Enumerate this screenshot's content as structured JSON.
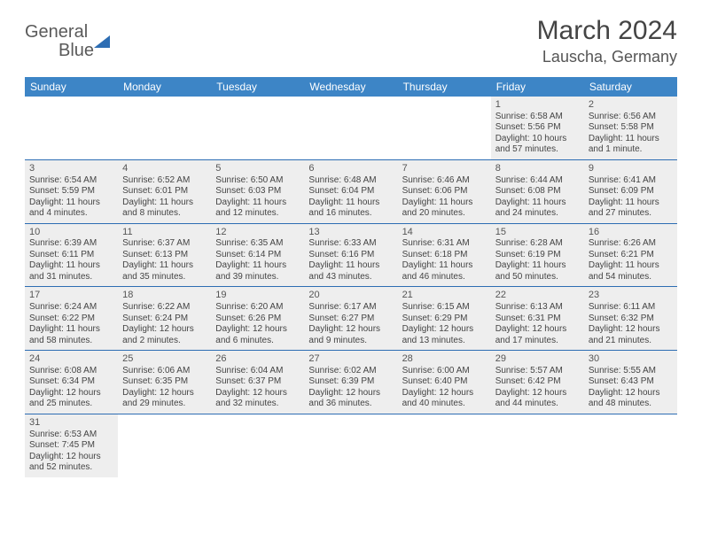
{
  "logo": {
    "part1": "General",
    "part2": "Blue"
  },
  "title": "March 2024",
  "location": "Lauscha, Germany",
  "dayNames": [
    "Sunday",
    "Monday",
    "Tuesday",
    "Wednesday",
    "Thursday",
    "Friday",
    "Saturday"
  ],
  "colors": {
    "header_bg": "#3d85c6",
    "divider": "#2d6db3",
    "shade": "#eeeeee",
    "text": "#444444"
  },
  "weeks": [
    [
      {
        "n": "",
        "sr": "",
        "ss": "",
        "dl": ""
      },
      {
        "n": "",
        "sr": "",
        "ss": "",
        "dl": ""
      },
      {
        "n": "",
        "sr": "",
        "ss": "",
        "dl": ""
      },
      {
        "n": "",
        "sr": "",
        "ss": "",
        "dl": ""
      },
      {
        "n": "",
        "sr": "",
        "ss": "",
        "dl": ""
      },
      {
        "n": "1",
        "sr": "Sunrise: 6:58 AM",
        "ss": "Sunset: 5:56 PM",
        "dl": "Daylight: 10 hours and 57 minutes."
      },
      {
        "n": "2",
        "sr": "Sunrise: 6:56 AM",
        "ss": "Sunset: 5:58 PM",
        "dl": "Daylight: 11 hours and 1 minute."
      }
    ],
    [
      {
        "n": "3",
        "sr": "Sunrise: 6:54 AM",
        "ss": "Sunset: 5:59 PM",
        "dl": "Daylight: 11 hours and 4 minutes."
      },
      {
        "n": "4",
        "sr": "Sunrise: 6:52 AM",
        "ss": "Sunset: 6:01 PM",
        "dl": "Daylight: 11 hours and 8 minutes."
      },
      {
        "n": "5",
        "sr": "Sunrise: 6:50 AM",
        "ss": "Sunset: 6:03 PM",
        "dl": "Daylight: 11 hours and 12 minutes."
      },
      {
        "n": "6",
        "sr": "Sunrise: 6:48 AM",
        "ss": "Sunset: 6:04 PM",
        "dl": "Daylight: 11 hours and 16 minutes."
      },
      {
        "n": "7",
        "sr": "Sunrise: 6:46 AM",
        "ss": "Sunset: 6:06 PM",
        "dl": "Daylight: 11 hours and 20 minutes."
      },
      {
        "n": "8",
        "sr": "Sunrise: 6:44 AM",
        "ss": "Sunset: 6:08 PM",
        "dl": "Daylight: 11 hours and 24 minutes."
      },
      {
        "n": "9",
        "sr": "Sunrise: 6:41 AM",
        "ss": "Sunset: 6:09 PM",
        "dl": "Daylight: 11 hours and 27 minutes."
      }
    ],
    [
      {
        "n": "10",
        "sr": "Sunrise: 6:39 AM",
        "ss": "Sunset: 6:11 PM",
        "dl": "Daylight: 11 hours and 31 minutes."
      },
      {
        "n": "11",
        "sr": "Sunrise: 6:37 AM",
        "ss": "Sunset: 6:13 PM",
        "dl": "Daylight: 11 hours and 35 minutes."
      },
      {
        "n": "12",
        "sr": "Sunrise: 6:35 AM",
        "ss": "Sunset: 6:14 PM",
        "dl": "Daylight: 11 hours and 39 minutes."
      },
      {
        "n": "13",
        "sr": "Sunrise: 6:33 AM",
        "ss": "Sunset: 6:16 PM",
        "dl": "Daylight: 11 hours and 43 minutes."
      },
      {
        "n": "14",
        "sr": "Sunrise: 6:31 AM",
        "ss": "Sunset: 6:18 PM",
        "dl": "Daylight: 11 hours and 46 minutes."
      },
      {
        "n": "15",
        "sr": "Sunrise: 6:28 AM",
        "ss": "Sunset: 6:19 PM",
        "dl": "Daylight: 11 hours and 50 minutes."
      },
      {
        "n": "16",
        "sr": "Sunrise: 6:26 AM",
        "ss": "Sunset: 6:21 PM",
        "dl": "Daylight: 11 hours and 54 minutes."
      }
    ],
    [
      {
        "n": "17",
        "sr": "Sunrise: 6:24 AM",
        "ss": "Sunset: 6:22 PM",
        "dl": "Daylight: 11 hours and 58 minutes."
      },
      {
        "n": "18",
        "sr": "Sunrise: 6:22 AM",
        "ss": "Sunset: 6:24 PM",
        "dl": "Daylight: 12 hours and 2 minutes."
      },
      {
        "n": "19",
        "sr": "Sunrise: 6:20 AM",
        "ss": "Sunset: 6:26 PM",
        "dl": "Daylight: 12 hours and 6 minutes."
      },
      {
        "n": "20",
        "sr": "Sunrise: 6:17 AM",
        "ss": "Sunset: 6:27 PM",
        "dl": "Daylight: 12 hours and 9 minutes."
      },
      {
        "n": "21",
        "sr": "Sunrise: 6:15 AM",
        "ss": "Sunset: 6:29 PM",
        "dl": "Daylight: 12 hours and 13 minutes."
      },
      {
        "n": "22",
        "sr": "Sunrise: 6:13 AM",
        "ss": "Sunset: 6:31 PM",
        "dl": "Daylight: 12 hours and 17 minutes."
      },
      {
        "n": "23",
        "sr": "Sunrise: 6:11 AM",
        "ss": "Sunset: 6:32 PM",
        "dl": "Daylight: 12 hours and 21 minutes."
      }
    ],
    [
      {
        "n": "24",
        "sr": "Sunrise: 6:08 AM",
        "ss": "Sunset: 6:34 PM",
        "dl": "Daylight: 12 hours and 25 minutes."
      },
      {
        "n": "25",
        "sr": "Sunrise: 6:06 AM",
        "ss": "Sunset: 6:35 PM",
        "dl": "Daylight: 12 hours and 29 minutes."
      },
      {
        "n": "26",
        "sr": "Sunrise: 6:04 AM",
        "ss": "Sunset: 6:37 PM",
        "dl": "Daylight: 12 hours and 32 minutes."
      },
      {
        "n": "27",
        "sr": "Sunrise: 6:02 AM",
        "ss": "Sunset: 6:39 PM",
        "dl": "Daylight: 12 hours and 36 minutes."
      },
      {
        "n": "28",
        "sr": "Sunrise: 6:00 AM",
        "ss": "Sunset: 6:40 PM",
        "dl": "Daylight: 12 hours and 40 minutes."
      },
      {
        "n": "29",
        "sr": "Sunrise: 5:57 AM",
        "ss": "Sunset: 6:42 PM",
        "dl": "Daylight: 12 hours and 44 minutes."
      },
      {
        "n": "30",
        "sr": "Sunrise: 5:55 AM",
        "ss": "Sunset: 6:43 PM",
        "dl": "Daylight: 12 hours and 48 minutes."
      }
    ],
    [
      {
        "n": "31",
        "sr": "Sunrise: 6:53 AM",
        "ss": "Sunset: 7:45 PM",
        "dl": "Daylight: 12 hours and 52 minutes."
      },
      {
        "n": "",
        "sr": "",
        "ss": "",
        "dl": ""
      },
      {
        "n": "",
        "sr": "",
        "ss": "",
        "dl": ""
      },
      {
        "n": "",
        "sr": "",
        "ss": "",
        "dl": ""
      },
      {
        "n": "",
        "sr": "",
        "ss": "",
        "dl": ""
      },
      {
        "n": "",
        "sr": "",
        "ss": "",
        "dl": ""
      },
      {
        "n": "",
        "sr": "",
        "ss": "",
        "dl": ""
      }
    ]
  ]
}
